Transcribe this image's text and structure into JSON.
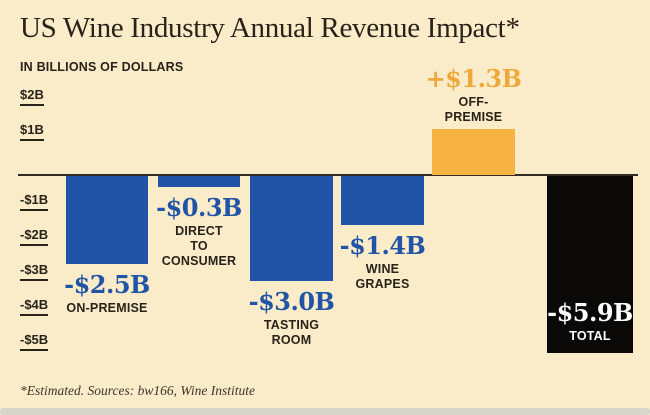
{
  "title": "US Wine Industry Annual Revenue Impact*",
  "subtitle": "IN BILLIONS OF DOLLARS",
  "footnote": "*Estimated. Sources: bw166, Wine Institute",
  "colors": {
    "background": "#FAECC9",
    "bar_blue": "#2153A6",
    "bar_orange": "#F6B243",
    "bar_black": "#0A0908",
    "text_dark": "#292219",
    "value_blue": "#2153A6",
    "value_orange": "#EFA83C",
    "value_white": "#FFFFFF",
    "axis_line": "#332C20",
    "footnote": "#3E362A",
    "bottom_strip": "#D7D5CC"
  },
  "chart_data": {
    "type": "bar",
    "title": "US Wine Industry Annual Revenue Impact (estimated)",
    "unit": "billions of dollars",
    "categories": [
      "On-Premise",
      "Direct to Consumer",
      "Tasting Room",
      "Wine Grapes",
      "Off-Premise",
      "Total"
    ],
    "values": [
      -2.5,
      -0.3,
      -3.0,
      -1.4,
      1.3,
      -5.9
    ],
    "ylim": [
      -5,
      2
    ],
    "grid": false,
    "legend": false,
    "axis_ticks": [
      {
        "label": "$2B",
        "value": 2
      },
      {
        "label": "$1B",
        "value": 1
      },
      {
        "label": "-$1B",
        "value": -1
      },
      {
        "label": "-$2B",
        "value": -2
      },
      {
        "label": "-$3B",
        "value": -3
      },
      {
        "label": "-$4B",
        "value": -4
      },
      {
        "label": "-$5B",
        "value": -5
      }
    ],
    "bars": [
      {
        "label": "-$2.5B",
        "category": "ON-PREMISE",
        "value": -2.5,
        "color": "bar_blue",
        "label_color": "value_blue",
        "label_pos": "below"
      },
      {
        "label": "-$0.3B",
        "category": "DIRECT\nTO\nCONSUMER",
        "value": -0.3,
        "color": "bar_blue",
        "label_color": "value_blue",
        "label_pos": "below"
      },
      {
        "label": "-$3.0B",
        "category": "TASTING\nROOM",
        "value": -3.0,
        "color": "bar_blue",
        "label_color": "value_blue",
        "label_pos": "below"
      },
      {
        "label": "-$1.4B",
        "category": "WINE\nGRAPES",
        "value": -1.4,
        "color": "bar_blue",
        "label_color": "value_blue",
        "label_pos": "below"
      },
      {
        "label": "+$1.3B",
        "category": "OFF-\nPREMISE",
        "value": 1.3,
        "color": "bar_orange",
        "label_color": "value_orange",
        "label_pos": "above"
      },
      {
        "label": "-$5.9B",
        "category": "TOTAL",
        "value": -5.9,
        "color": "bar_black",
        "label_color": "value_white",
        "label_pos": "inside"
      }
    ]
  }
}
